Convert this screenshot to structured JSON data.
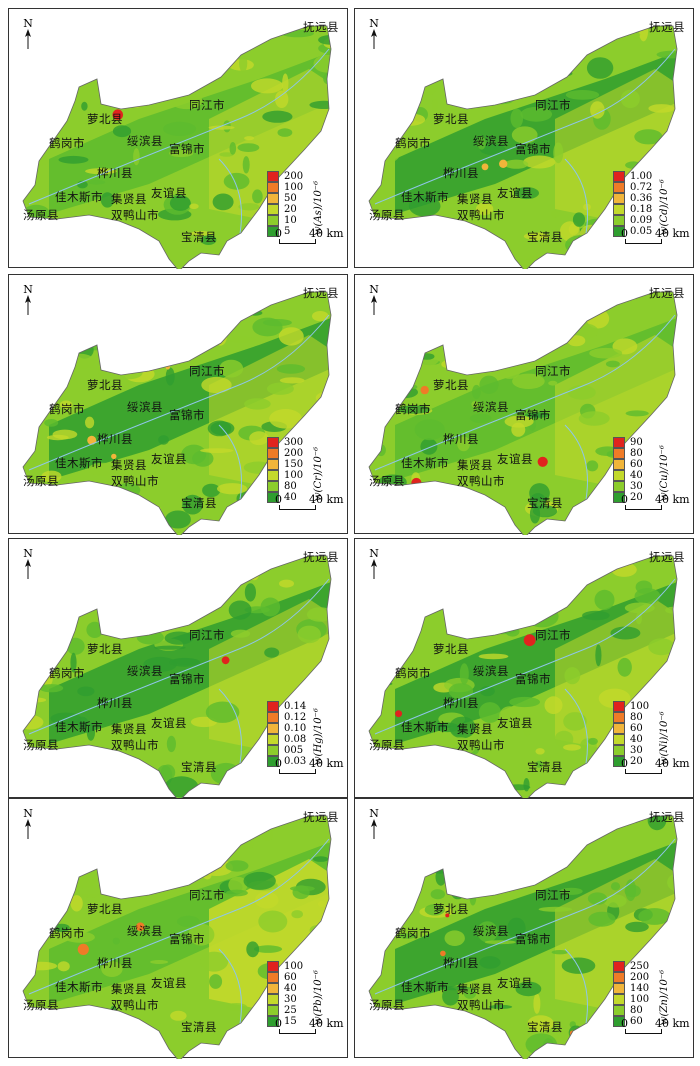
{
  "north_label": "N",
  "places": [
    {
      "key": "fuyuan",
      "name": "抚远县"
    },
    {
      "key": "tongjiang",
      "name": "同江市"
    },
    {
      "key": "luobei",
      "name": "萝北县"
    },
    {
      "key": "suibin",
      "name": "绥滨县"
    },
    {
      "key": "hegang",
      "name": "鹤岗市"
    },
    {
      "key": "fujin",
      "name": "富锦市"
    },
    {
      "key": "huachuan",
      "name": "桦川县"
    },
    {
      "key": "jiamusi",
      "name": "佳木斯市"
    },
    {
      "key": "jixian",
      "name": "集贤县"
    },
    {
      "key": "youyi",
      "name": "友谊县"
    },
    {
      "key": "tangyuan",
      "name": "汤原县"
    },
    {
      "key": "shuangyashan",
      "name": "双鸭山市"
    },
    {
      "key": "baoqing",
      "name": "宝清县"
    }
  ],
  "scale": {
    "start": "0",
    "end": "40 km"
  },
  "palette": [
    "#2f9e2f",
    "#5dbb2e",
    "#8ccd2c",
    "#c3d92b",
    "#f1b53a",
    "#ef7b27",
    "#e0231e"
  ],
  "panels": [
    {
      "element": "As",
      "title": "w(As)/10⁻⁶",
      "values": [
        "200",
        "100",
        "50",
        "20",
        "10",
        "5"
      ],
      "colors": [
        "#e0231e",
        "#ef7b27",
        "#f1b53a",
        "#c3d92b",
        "#8ccd2c",
        "#2f9e2f"
      ]
    },
    {
      "element": "Cd",
      "title": "w(Cd)/10⁻⁶",
      "values": [
        "1.00",
        "0.72",
        "0.36",
        "0.18",
        "0.09",
        "0.05"
      ],
      "colors": [
        "#e0231e",
        "#ef7b27",
        "#f1b53a",
        "#c3d92b",
        "#8ccd2c",
        "#2f9e2f"
      ]
    },
    {
      "element": "Cr",
      "title": "w(Cr)/10⁻⁶",
      "values": [
        "300",
        "200",
        "150",
        "100",
        "80",
        "40"
      ],
      "colors": [
        "#e0231e",
        "#ef7b27",
        "#f1b53a",
        "#c3d92b",
        "#8ccd2c",
        "#2f9e2f"
      ]
    },
    {
      "element": "Cu",
      "title": "w(Cu)/10⁻⁶",
      "values": [
        "90",
        "80",
        "60",
        "40",
        "30",
        "20"
      ],
      "colors": [
        "#e0231e",
        "#ef7b27",
        "#f1b53a",
        "#c3d92b",
        "#8ccd2c",
        "#2f9e2f"
      ]
    },
    {
      "element": "Hg",
      "title": "w(Hg)/10⁻⁶",
      "values": [
        "0.14",
        "0.12",
        "0.10",
        "0.08",
        "005",
        "0.03"
      ],
      "colors": [
        "#e0231e",
        "#ef7b27",
        "#f1b53a",
        "#c3d92b",
        "#8ccd2c",
        "#2f9e2f"
      ]
    },
    {
      "element": "Ni",
      "title": "w(Ni)/10⁻⁶",
      "values": [
        "100",
        "80",
        "60",
        "40",
        "30",
        "20"
      ],
      "colors": [
        "#e0231e",
        "#ef7b27",
        "#f1b53a",
        "#c3d92b",
        "#8ccd2c",
        "#2f9e2f"
      ]
    },
    {
      "element": "Pb",
      "title": "w(Pb)/10⁻⁶",
      "values": [
        "100",
        "60",
        "40",
        "30",
        "25",
        "15"
      ],
      "colors": [
        "#e0231e",
        "#ef7b27",
        "#f1b53a",
        "#c3d92b",
        "#8ccd2c",
        "#2f9e2f"
      ]
    },
    {
      "element": "Zn",
      "title": "w(Zn)/10⁻⁶",
      "values": [
        "250",
        "200",
        "140",
        "100",
        "80",
        "60"
      ],
      "colors": [
        "#e0231e",
        "#ef7b27",
        "#f1b53a",
        "#c3d92b",
        "#8ccd2c",
        "#2f9e2f"
      ]
    }
  ]
}
